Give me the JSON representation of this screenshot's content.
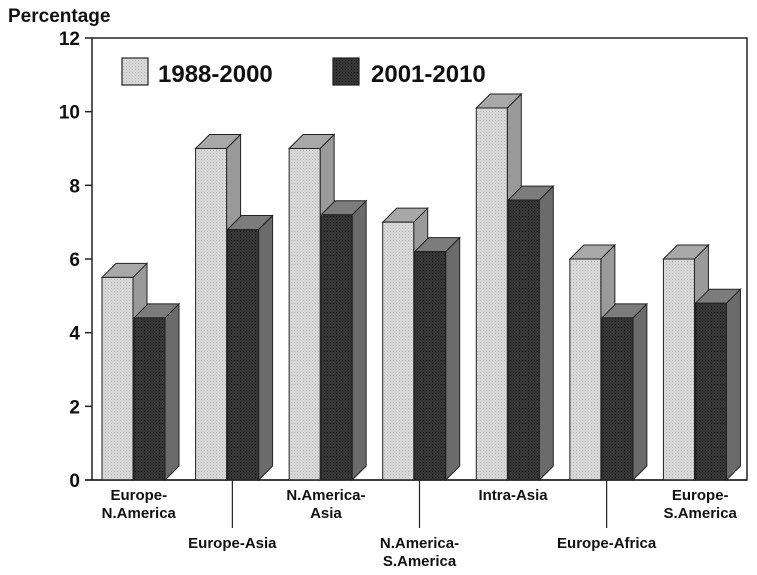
{
  "chart_data": {
    "type": "bar",
    "ylabel": "Percentage",
    "ylim": [
      0,
      12
    ],
    "yticks": [
      0,
      2,
      4,
      6,
      8,
      10,
      12
    ],
    "grid": false,
    "legend_position": "top-left",
    "categories": [
      [
        "Europe-",
        "N.America"
      ],
      [
        "Europe-Asia"
      ],
      [
        "N.America-",
        "Asia"
      ],
      [
        "N.America-",
        "S.America"
      ],
      [
        "Intra-Asia"
      ],
      [
        "Europe-Africa"
      ],
      [
        "Europe-",
        "S.America"
      ]
    ],
    "series": [
      {
        "name": "1988-2000",
        "color": "#cfcfcf",
        "values": [
          5.5,
          9.0,
          9.0,
          7.0,
          10.1,
          6.0,
          6.0
        ]
      },
      {
        "name": "2001-2010",
        "color": "#303030",
        "values": [
          4.4,
          6.8,
          7.2,
          6.2,
          7.6,
          4.4,
          4.8
        ]
      }
    ]
  }
}
